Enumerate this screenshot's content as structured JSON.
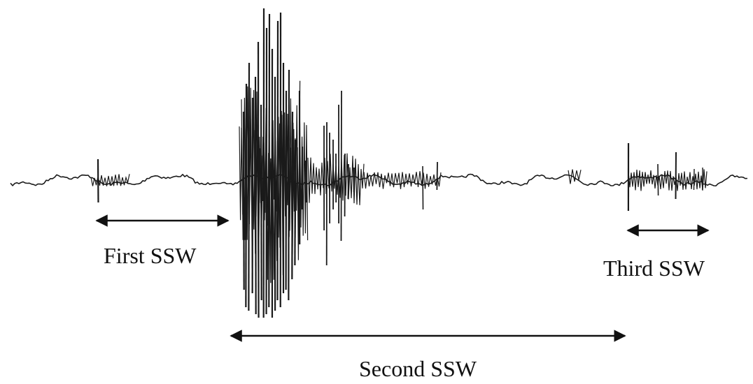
{
  "labels": {
    "first": "First SSW",
    "second": "Second SSW",
    "third": "Third SSW"
  },
  "colors": {
    "trace": "#1a1a1a",
    "arrow": "#111111",
    "background": "#ffffff"
  }
}
